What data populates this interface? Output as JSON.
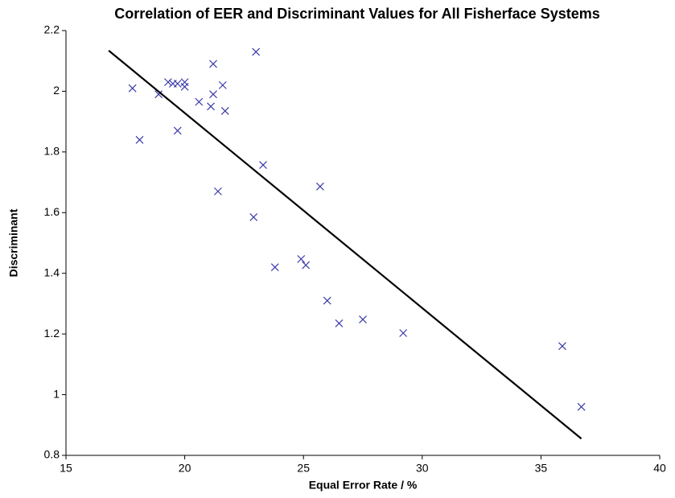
{
  "chart_data": {
    "type": "scatter",
    "title": "Correlation of EER and Discriminant Values for All Fisherface Systems",
    "x_label": "Equal Error Rate / %",
    "y_label": "Discriminant",
    "series": [
      {
        "name": "Fisherface systems",
        "color": "#3a3aa8",
        "x": [
          17.8,
          18.1,
          18.9,
          19.3,
          19.5,
          19.7,
          20.0,
          20.0,
          19.7,
          20.6,
          21.1,
          21.2,
          21.2,
          21.6,
          21.7,
          21.4,
          23.0,
          22.9,
          23.3,
          23.8,
          24.9,
          25.1,
          25.7,
          26.0,
          26.5,
          27.5,
          29.2,
          35.9,
          36.7
        ],
        "values": [
          2.01,
          1.84,
          1.99,
          2.03,
          2.025,
          2.025,
          2.03,
          2.015,
          1.87,
          1.965,
          1.95,
          1.99,
          2.09,
          2.02,
          1.935,
          1.67,
          2.13,
          1.585,
          1.757,
          1.42,
          1.447,
          1.427,
          1.686,
          1.31,
          1.235,
          1.248,
          1.203,
          1.16,
          0.96
        ]
      }
    ],
    "trendline": {
      "color": "#000000",
      "x": [
        16.8,
        36.7
      ],
      "y": [
        2.134,
        0.855
      ]
    },
    "xlim": [
      15,
      40
    ],
    "xticks": [
      15,
      20,
      25,
      30,
      35,
      40
    ],
    "ylim": [
      0.8,
      2.2
    ],
    "yticks": [
      0.8,
      1,
      1.2,
      1.4,
      1.6,
      1.8,
      2,
      2.2
    ],
    "grid": false
  }
}
